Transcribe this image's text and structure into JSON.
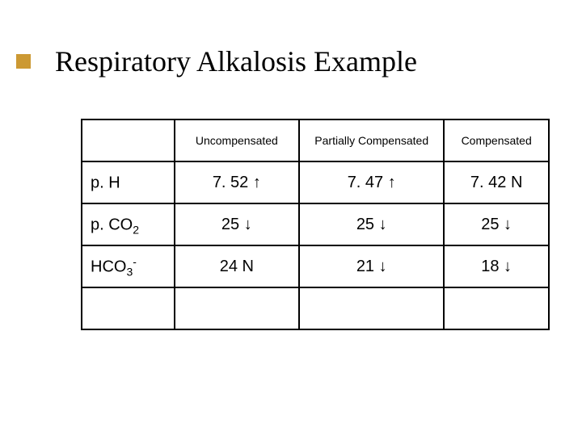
{
  "title": "Respiratory Alkalosis Example",
  "table": {
    "headers": {
      "col1": "Uncompensated",
      "col2": "Partially Compensated",
      "col3": "Compensated"
    },
    "rows": [
      {
        "label_base": "p. H",
        "label_sub": "",
        "label_sup": "",
        "c1": "7. 52 ↑",
        "c2": "7. 47 ↑",
        "c3": "7. 42 N"
      },
      {
        "label_base": "p. CO",
        "label_sub": "2",
        "label_sup": "",
        "c1": "25 ↓",
        "c2": "25 ↓",
        "c3": "25 ↓"
      },
      {
        "label_base": "HCO",
        "label_sub": "3",
        "label_sup": "-",
        "c1": "24 N",
        "c2": "21 ↓",
        "c3": "18 ↓"
      }
    ]
  },
  "colors": {
    "accent": "#cc9933",
    "border": "#000000",
    "background": "#ffffff",
    "text": "#000000"
  },
  "fonts": {
    "title_family": "Times New Roman",
    "title_size": 36,
    "header_size": 14,
    "cell_size": 20
  }
}
